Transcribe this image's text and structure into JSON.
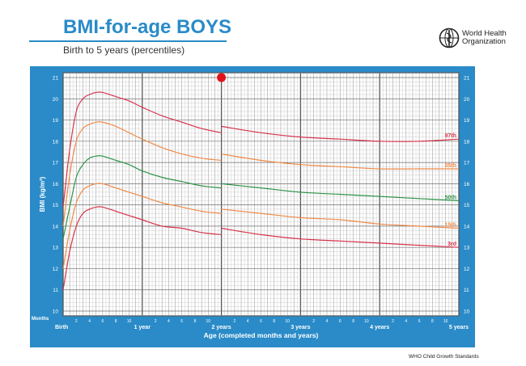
{
  "header": {
    "title": "BMI-for-age BOYS",
    "subtitle": "Birth to 5 years (percentiles)"
  },
  "organization": {
    "name_line1": "World Health",
    "name_line2": "Organization",
    "logo_icon": "who-emblem-icon"
  },
  "footer": {
    "credit": "WHO Child Growth Standards"
  },
  "colors": {
    "brand_blue": "#2a8bc8",
    "grid_paper": "#ffffff",
    "grid_line": "#9a9a9a",
    "marker": "#e0131b",
    "p97": "#d8334a",
    "p85": "#f08a47",
    "p50": "#2f9449",
    "p15": "#f08a47",
    "p3": "#d8334a"
  },
  "chart_data": {
    "type": "line",
    "title": "BMI-for-age BOYS",
    "subtitle": "Birth to 5 years (percentiles)",
    "xlabel": "Age (completed months and years)",
    "ylabel": "BMI (kg/m²)",
    "xlim": [
      0,
      60
    ],
    "ylim": [
      10,
      21
    ],
    "x_units": "months",
    "y_ticks": [
      10,
      11,
      12,
      13,
      14,
      15,
      16,
      17,
      18,
      19,
      20,
      21
    ],
    "x_corner_label": "Months",
    "x_major_labels": [
      {
        "x": 0,
        "label": "Birth"
      },
      {
        "x": 12,
        "label": "1 year"
      },
      {
        "x": 24,
        "label": "2 years"
      },
      {
        "x": 36,
        "label": "3 years"
      },
      {
        "x": 48,
        "label": "4 years"
      },
      {
        "x": 60,
        "label": "5 years"
      }
    ],
    "x_minor_labels": [
      2,
      4,
      6,
      8,
      10
    ],
    "grid": true,
    "legend_position": "right edge labels",
    "series": [
      {
        "name": "97th",
        "color": "#d8334a",
        "part1": {
          "x": [
            0,
            1,
            2,
            3,
            4,
            5,
            6,
            8,
            10,
            12,
            15,
            18,
            21,
            24
          ],
          "y": [
            14.9,
            17.6,
            19.4,
            20.0,
            20.2,
            20.3,
            20.3,
            20.1,
            19.9,
            19.6,
            19.2,
            18.9,
            18.6,
            18.4
          ]
        },
        "part2": {
          "x": [
            24,
            30,
            36,
            42,
            48,
            54,
            60
          ],
          "y": [
            18.7,
            18.4,
            18.2,
            18.1,
            18.0,
            18.0,
            18.1
          ]
        }
      },
      {
        "name": "85th",
        "color": "#f08a47",
        "part1": {
          "x": [
            0,
            1,
            2,
            3,
            4,
            5,
            6,
            8,
            10,
            12,
            15,
            18,
            21,
            24
          ],
          "y": [
            14.0,
            16.4,
            18.0,
            18.6,
            18.8,
            18.9,
            18.9,
            18.7,
            18.4,
            18.1,
            17.7,
            17.4,
            17.2,
            17.1
          ]
        },
        "part2": {
          "x": [
            24,
            30,
            36,
            42,
            48,
            54,
            60
          ],
          "y": [
            17.4,
            17.1,
            16.9,
            16.8,
            16.7,
            16.7,
            16.7
          ]
        }
      },
      {
        "name": "50th",
        "color": "#2f9449",
        "part1": {
          "x": [
            0,
            1,
            2,
            3,
            4,
            5,
            6,
            8,
            10,
            12,
            15,
            18,
            21,
            24
          ],
          "y": [
            13.4,
            14.9,
            16.3,
            16.9,
            17.2,
            17.3,
            17.3,
            17.1,
            16.9,
            16.6,
            16.3,
            16.1,
            15.9,
            15.8
          ]
        },
        "part2": {
          "x": [
            24,
            30,
            36,
            42,
            48,
            54,
            60
          ],
          "y": [
            16.0,
            15.8,
            15.6,
            15.5,
            15.4,
            15.3,
            15.2
          ]
        }
      },
      {
        "name": "15th",
        "color": "#f08a47",
        "part1": {
          "x": [
            0,
            1,
            2,
            3,
            4,
            5,
            6,
            8,
            10,
            12,
            15,
            18,
            21,
            24
          ],
          "y": [
            12.0,
            13.8,
            15.1,
            15.7,
            15.9,
            16.0,
            16.0,
            15.8,
            15.6,
            15.4,
            15.1,
            14.9,
            14.7,
            14.6
          ]
        },
        "part2": {
          "x": [
            24,
            30,
            36,
            42,
            48,
            54,
            60
          ],
          "y": [
            14.8,
            14.6,
            14.4,
            14.3,
            14.1,
            14.0,
            13.9
          ]
        }
      },
      {
        "name": "3rd",
        "color": "#d8334a",
        "part1": {
          "x": [
            0,
            1,
            2,
            3,
            4,
            5,
            6,
            8,
            10,
            12,
            15,
            18,
            21,
            24
          ],
          "y": [
            11.0,
            12.8,
            14.0,
            14.6,
            14.8,
            14.9,
            14.9,
            14.7,
            14.5,
            14.3,
            14.0,
            13.9,
            13.7,
            13.6
          ]
        },
        "part2": {
          "x": [
            24,
            30,
            36,
            42,
            48,
            54,
            60
          ],
          "y": [
            13.9,
            13.6,
            13.4,
            13.3,
            13.2,
            13.1,
            13.0
          ]
        }
      }
    ],
    "marker_point": {
      "x": 24,
      "y": 21
    }
  }
}
